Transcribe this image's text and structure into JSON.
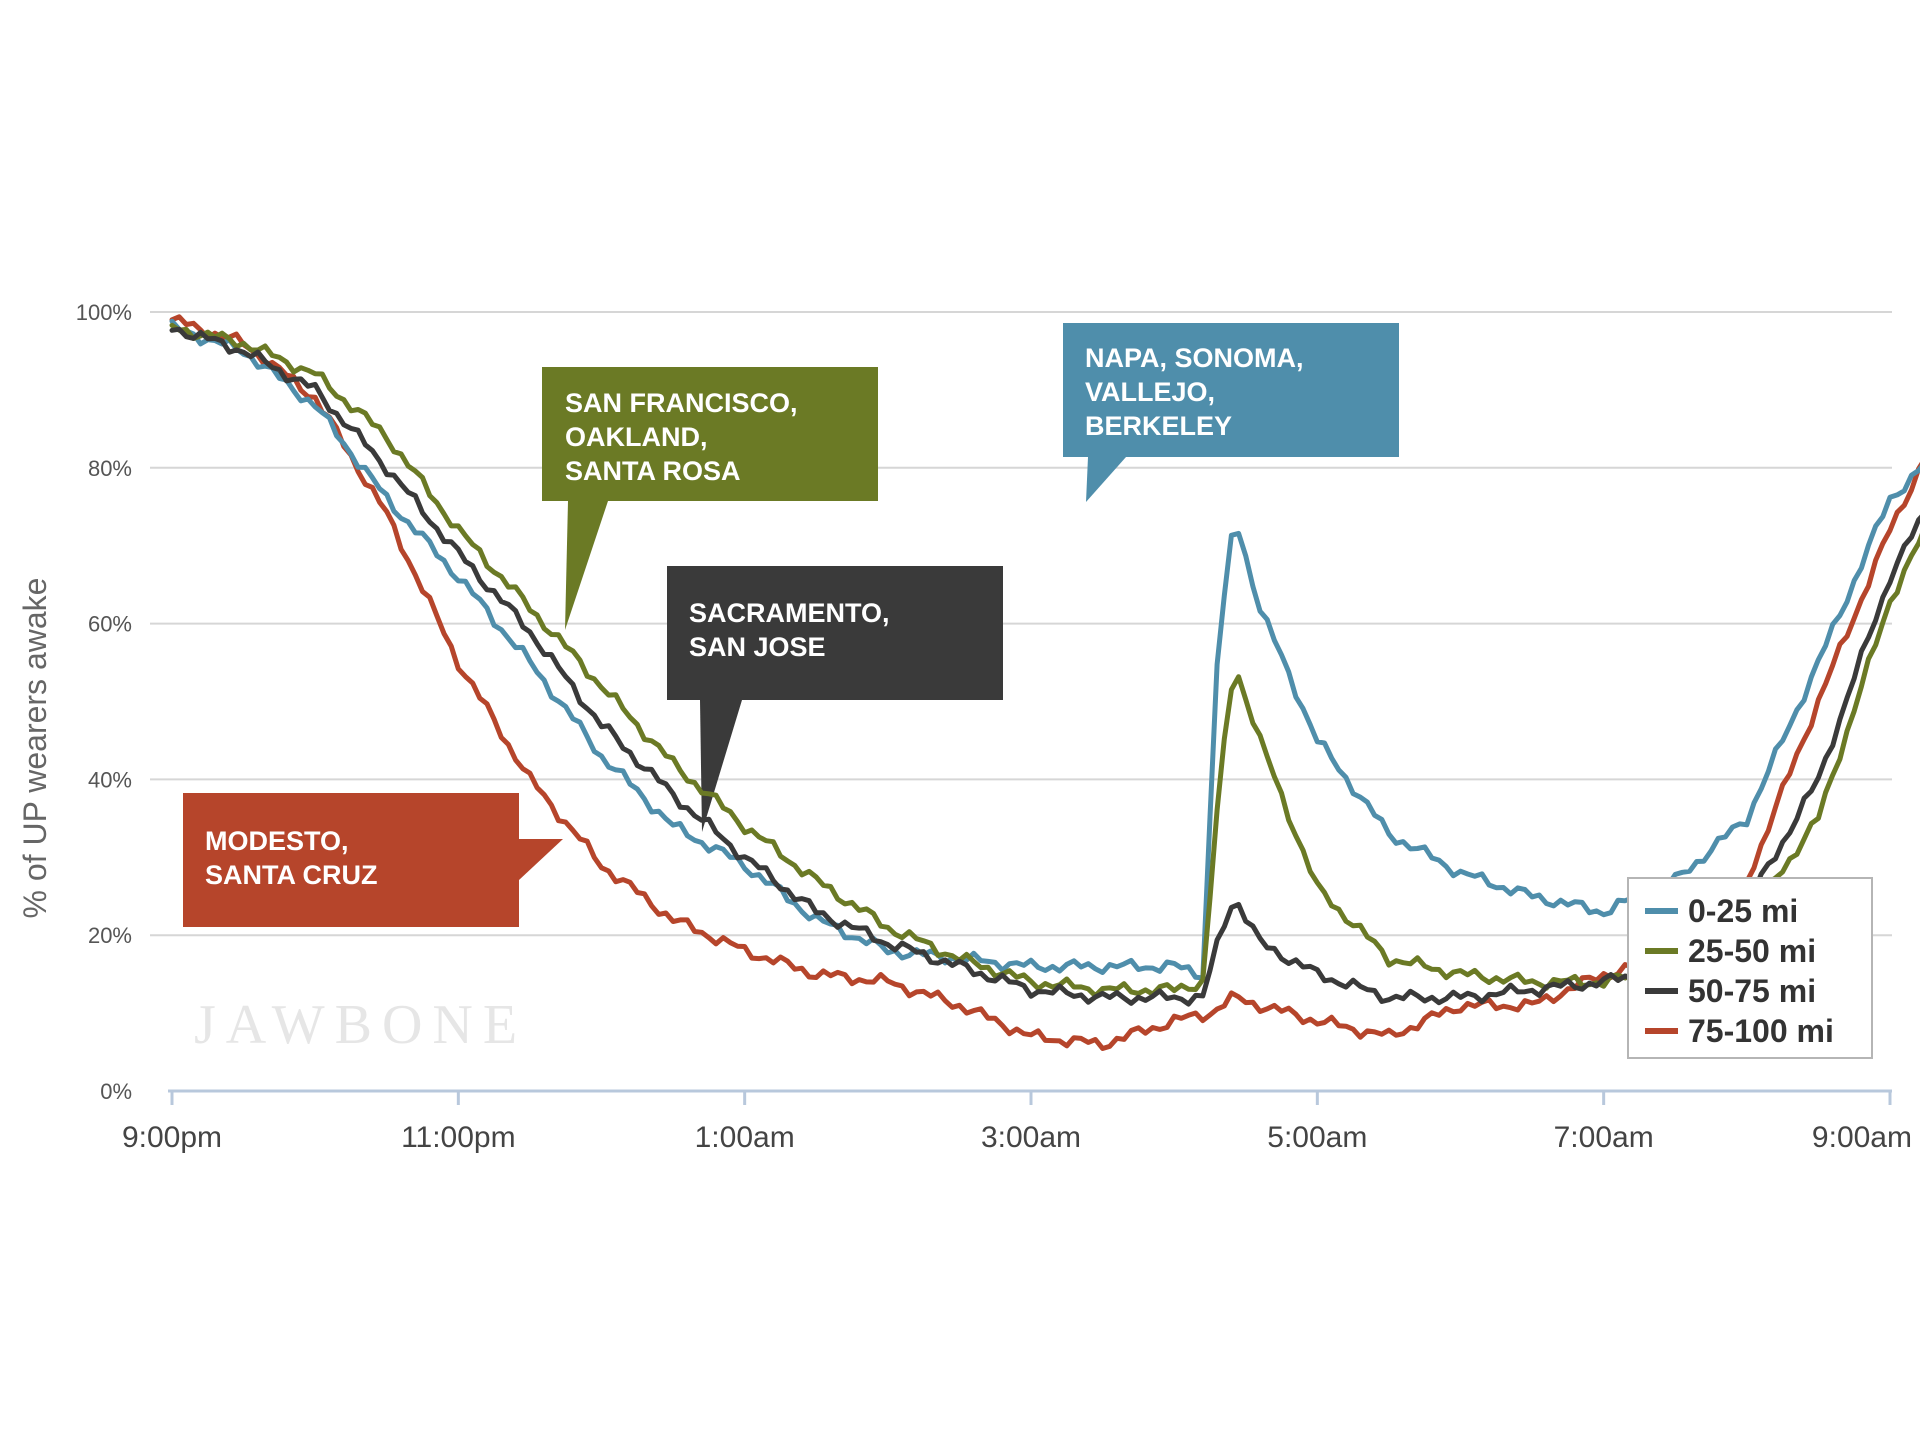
{
  "chart_data": {
    "type": "line",
    "ylabel": "% of UP wearers awake",
    "xlabel": "",
    "yticks": [
      "0%",
      "20%",
      "40%",
      "60%",
      "80%",
      "100%"
    ],
    "ylim": [
      0,
      100
    ],
    "xticks": [
      "9:00pm",
      "11:00pm",
      "1:00am",
      "3:00am",
      "5:00am",
      "7:00am",
      "9:00am"
    ],
    "xlim": [
      0,
      12
    ],
    "grid": true,
    "legend_position": "bottom-right",
    "watermark": "JAWBONE",
    "colors": {
      "0-25 mi": "#4f8eab",
      "25-50 mi": "#6b7a25",
      "50-75 mi": "#3a3a3a",
      "75-100 mi": "#b6452b"
    },
    "series": [
      {
        "name": "0-25 mi",
        "points": [
          [
            0,
            98
          ],
          [
            0.5,
            95
          ],
          [
            1,
            88
          ],
          [
            1.5,
            76
          ],
          [
            2,
            66
          ],
          [
            2.5,
            55
          ],
          [
            3,
            43
          ],
          [
            3.5,
            34
          ],
          [
            4,
            29
          ],
          [
            4.5,
            22
          ],
          [
            5,
            18
          ],
          [
            5.5,
            17
          ],
          [
            6,
            16
          ],
          [
            6.5,
            16
          ],
          [
            7,
            16
          ],
          [
            7.2,
            15
          ],
          [
            7.3,
            55
          ],
          [
            7.42,
            74
          ],
          [
            7.6,
            62
          ],
          [
            8,
            45
          ],
          [
            8.5,
            33
          ],
          [
            9,
            28
          ],
          [
            9.5,
            25
          ],
          [
            10,
            23
          ],
          [
            10.5,
            27
          ],
          [
            11,
            35
          ],
          [
            11.5,
            55
          ],
          [
            12,
            76
          ],
          [
            12.5,
            85
          ]
        ]
      },
      {
        "name": "25-50 mi",
        "points": [
          [
            0,
            98
          ],
          [
            0.5,
            96
          ],
          [
            1,
            92
          ],
          [
            1.5,
            84
          ],
          [
            2,
            72
          ],
          [
            2.5,
            62
          ],
          [
            3,
            52
          ],
          [
            3.5,
            42
          ],
          [
            4,
            34
          ],
          [
            4.5,
            27
          ],
          [
            5,
            21
          ],
          [
            5.5,
            17
          ],
          [
            6,
            14
          ],
          [
            6.5,
            13
          ],
          [
            7,
            13
          ],
          [
            7.2,
            14
          ],
          [
            7.32,
            40
          ],
          [
            7.42,
            55
          ],
          [
            7.6,
            45
          ],
          [
            8,
            26
          ],
          [
            8.5,
            17
          ],
          [
            9,
            15
          ],
          [
            9.5,
            14
          ],
          [
            10,
            14
          ],
          [
            10.5,
            16
          ],
          [
            11,
            22
          ],
          [
            11.5,
            35
          ],
          [
            12,
            63
          ],
          [
            12.5,
            81
          ]
        ]
      },
      {
        "name": "50-75 mi",
        "points": [
          [
            0,
            98
          ],
          [
            0.5,
            95
          ],
          [
            1,
            90
          ],
          [
            1.5,
            80
          ],
          [
            2,
            69
          ],
          [
            2.5,
            59
          ],
          [
            3,
            47
          ],
          [
            3.5,
            38
          ],
          [
            4,
            30
          ],
          [
            4.5,
            23
          ],
          [
            5,
            19
          ],
          [
            5.5,
            16
          ],
          [
            6,
            13
          ],
          [
            6.5,
            12
          ],
          [
            7,
            12
          ],
          [
            7.2,
            12
          ],
          [
            7.32,
            20
          ],
          [
            7.42,
            25
          ],
          [
            7.6,
            19
          ],
          [
            8,
            15
          ],
          [
            8.5,
            12
          ],
          [
            9,
            12
          ],
          [
            9.5,
            13
          ],
          [
            10,
            14
          ],
          [
            10.5,
            16
          ],
          [
            11,
            24
          ],
          [
            11.5,
            40
          ],
          [
            12,
            66
          ],
          [
            12.5,
            83
          ]
        ]
      },
      {
        "name": "75-100 mi",
        "points": [
          [
            0,
            99
          ],
          [
            0.5,
            96
          ],
          [
            1,
            89
          ],
          [
            1.5,
            74
          ],
          [
            2,
            55
          ],
          [
            2.5,
            40
          ],
          [
            3,
            29
          ],
          [
            3.5,
            22
          ],
          [
            4,
            18
          ],
          [
            4.5,
            15
          ],
          [
            5,
            14
          ],
          [
            5.5,
            11
          ],
          [
            6,
            7
          ],
          [
            6.5,
            6
          ],
          [
            7,
            9
          ],
          [
            7.25,
            10
          ],
          [
            7.42,
            12
          ],
          [
            7.6,
            11
          ],
          [
            8,
            9
          ],
          [
            8.5,
            7
          ],
          [
            9,
            11
          ],
          [
            9.5,
            11
          ],
          [
            10,
            15
          ],
          [
            10.5,
            17
          ],
          [
            11,
            27
          ],
          [
            11.5,
            50
          ],
          [
            12,
            72
          ],
          [
            12.5,
            91
          ]
        ]
      }
    ],
    "annotations": [
      {
        "id": "sf",
        "lines": [
          "SAN FRANCISCO,",
          "OAKLAND,",
          "SANTA ROSA"
        ],
        "color": "#6b7a25"
      },
      {
        "id": "sac",
        "lines": [
          "SACRAMENTO,",
          "SAN JOSE"
        ],
        "color": "#3a3a3a"
      },
      {
        "id": "napa",
        "lines": [
          "NAPA, SONOMA,",
          "VALLEJO,",
          "BERKELEY"
        ],
        "color": "#4f8eab"
      },
      {
        "id": "modesto",
        "lines": [
          "MODESTO,",
          "SANTA CRUZ"
        ],
        "color": "#b6452b"
      }
    ]
  }
}
